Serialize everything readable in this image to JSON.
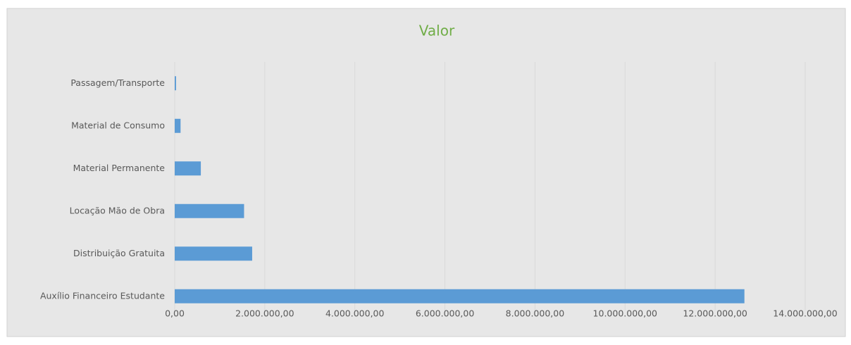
{
  "chart_data": {
    "type": "barh",
    "title": "Valor",
    "categories": [
      "Passagem/Transporte",
      "Material de Consumo",
      "Material Permanente",
      "Locação Mão de Obra",
      "Distribuição Gratuita",
      "Auxílio Financeiro Estudante"
    ],
    "values": [
      30000,
      130000,
      580000,
      1540000,
      1720000,
      12650000
    ],
    "color": "#5b9bd5",
    "xlim": [
      0,
      14000000
    ],
    "xticks": [
      {
        "value": 0,
        "label": "0,00"
      },
      {
        "value": 2000000,
        "label": "2.000.000,00"
      },
      {
        "value": 4000000,
        "label": "4.000.000,00"
      },
      {
        "value": 6000000,
        "label": "6.000.000,00"
      },
      {
        "value": 8000000,
        "label": "8.000.000,00"
      },
      {
        "value": 10000000,
        "label": "10.000.000,00"
      },
      {
        "value": 12000000,
        "label": "12.000.000,00"
      },
      {
        "value": 14000000,
        "label": "14.000.000,00"
      }
    ],
    "grid": true
  }
}
